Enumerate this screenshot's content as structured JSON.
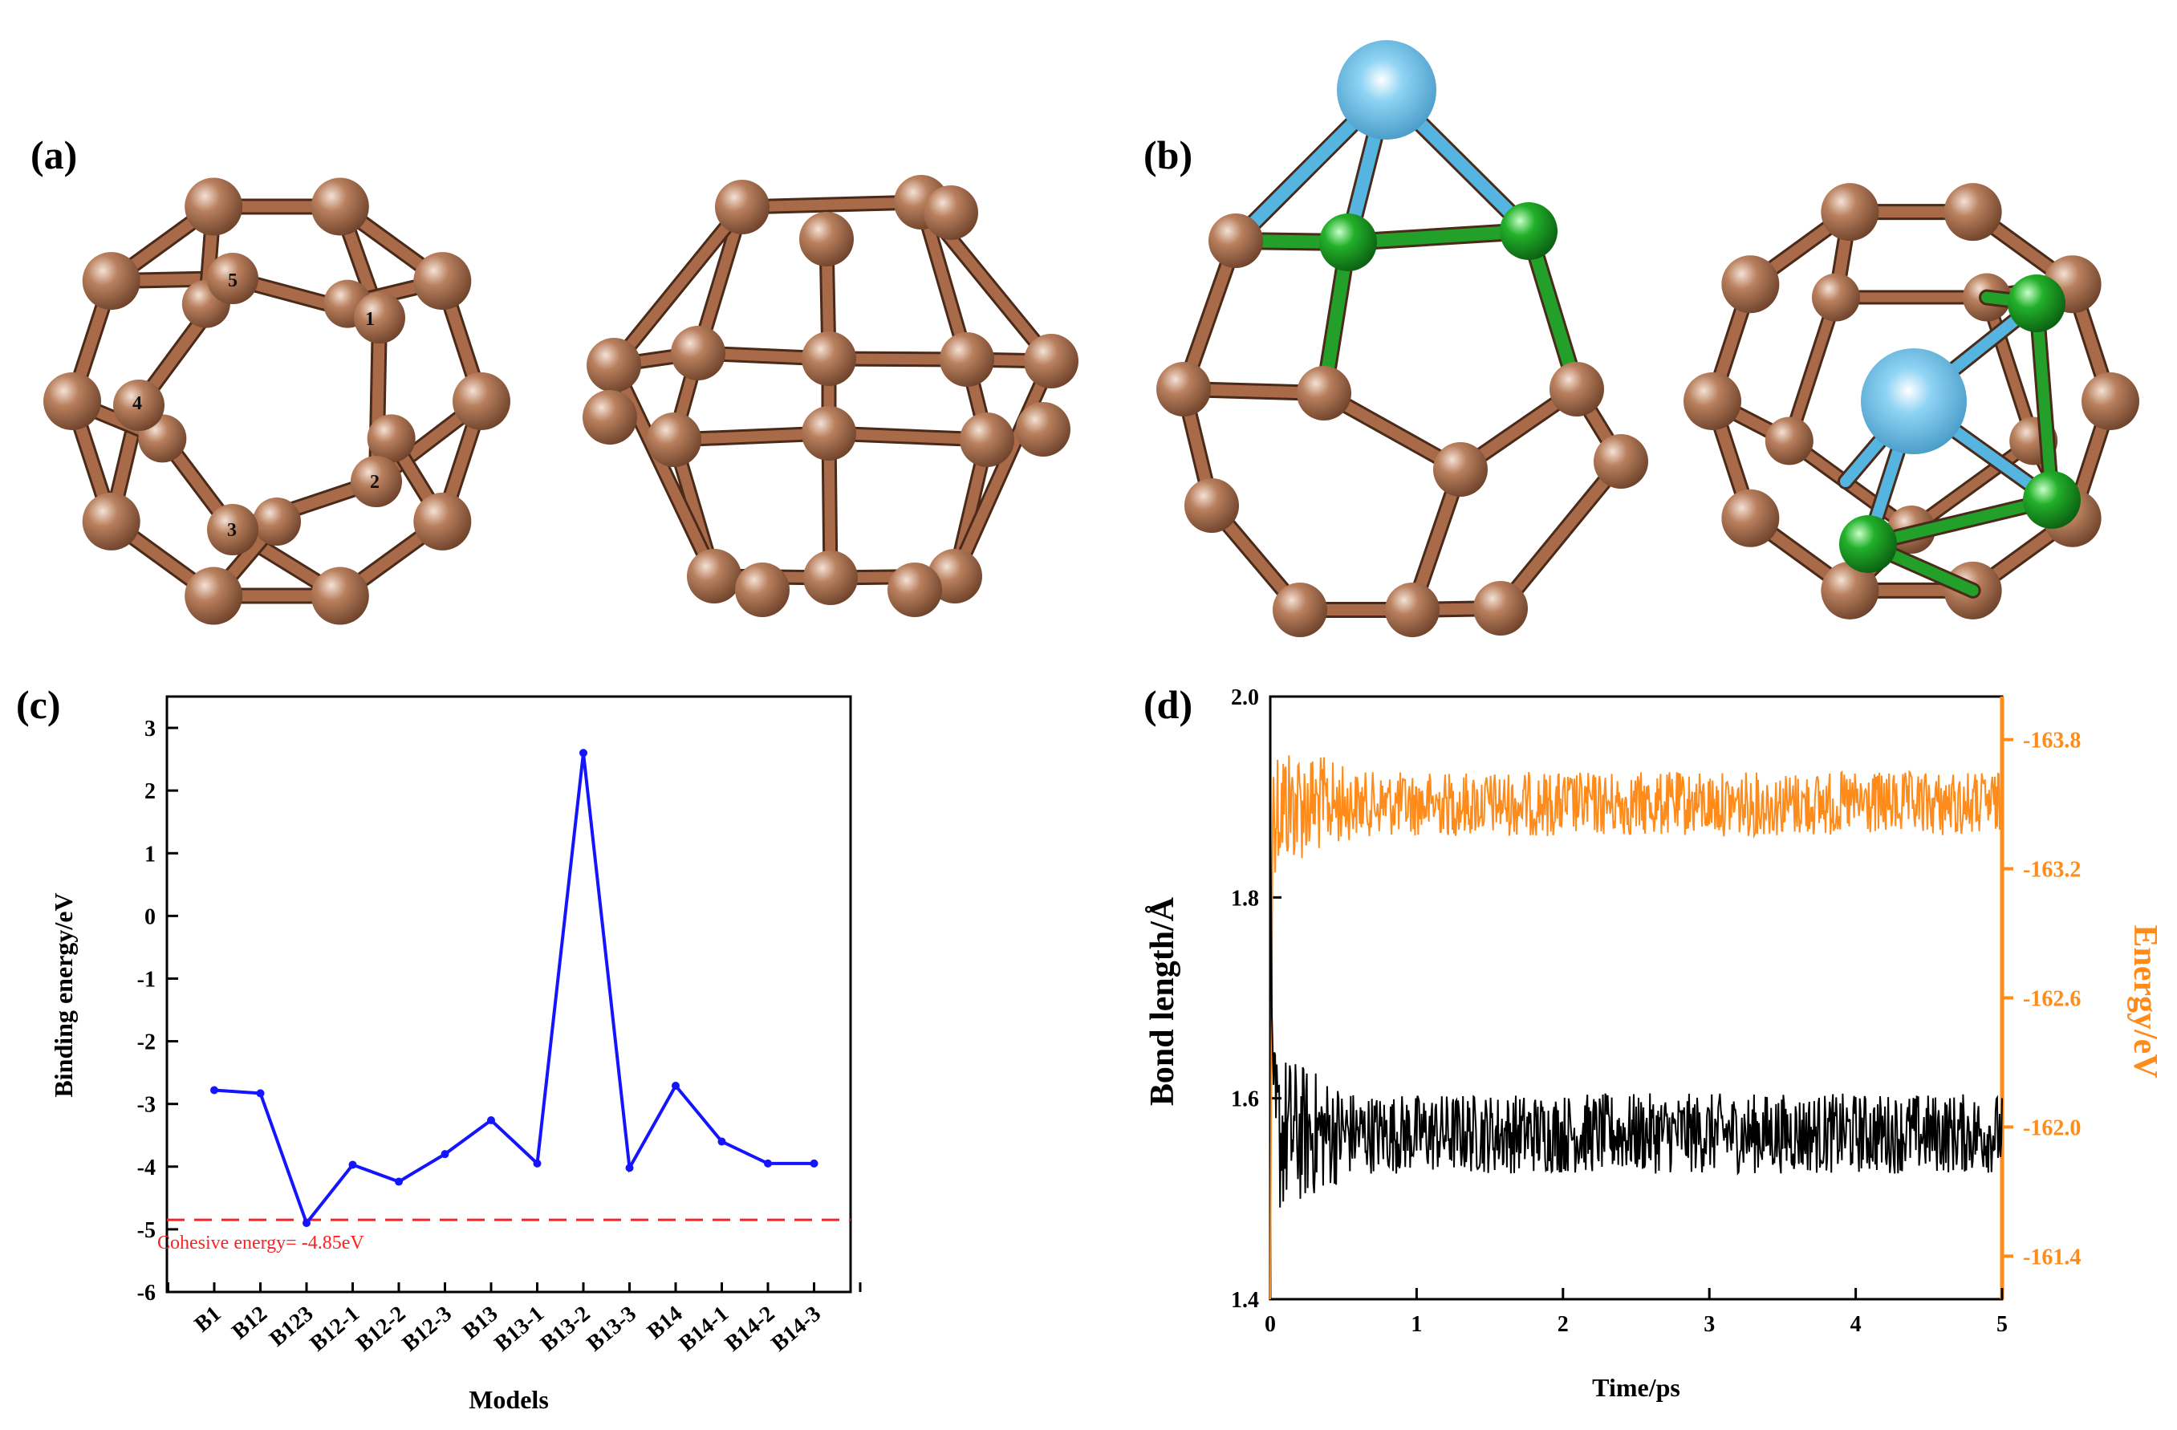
{
  "panels": {
    "a": "(a)",
    "b": "(b)",
    "c": "(c)",
    "d": "(d)"
  },
  "colors": {
    "boron": "#a86a48",
    "highlight_atom": "#22a02a",
    "metal_atom": "#56b4e0",
    "line_c": "#1414ff",
    "cohesive_line": "#ff2020",
    "bond_series": "#000000",
    "energy_series": "#ff8c1a"
  },
  "cluster_labels": [
    "1",
    "2",
    "3",
    "4",
    "5"
  ],
  "chart_data": [
    {
      "type": "line",
      "panel": "c",
      "categories": [
        "B1",
        "B12",
        "B123",
        "B12-1",
        "B12-2",
        "B12-3",
        "B13",
        "B13-1",
        "B13-2",
        "B13-3",
        "B14",
        "B14-1",
        "B14-2",
        "B14-3"
      ],
      "values": [
        -2.78,
        -2.83,
        -4.9,
        -3.97,
        -4.24,
        -3.8,
        -3.26,
        -3.95,
        2.6,
        -4.02,
        -2.71,
        -3.6,
        -3.95,
        -3.95
      ],
      "xlabel": "Models",
      "ylabel": "Binding energy/eV",
      "ylim": [
        -6,
        3.5
      ],
      "yticks": [
        3,
        2,
        1,
        0,
        -1,
        -2,
        -3,
        -4,
        -5,
        -6
      ],
      "reference_line": {
        "value": -4.85,
        "label": "Cohesive energy= -4.85eV"
      },
      "grid": false
    },
    {
      "type": "line",
      "panel": "d",
      "xlabel": "Time/ps",
      "ylabel": "Bond length/Å",
      "ylabel_right": "Energy/eV",
      "xlim": [
        0,
        5
      ],
      "xticks": [
        0,
        1,
        2,
        3,
        4,
        5
      ],
      "ylim": [
        1.4,
        2.0
      ],
      "yticks": [
        1.4,
        1.6,
        1.8,
        2.0
      ],
      "ylim_right": [
        -161.2,
        -164.0
      ],
      "yticks_right": [
        "-163.8",
        "-163.2",
        "-162.6",
        "-162.0",
        "-161.4"
      ],
      "series": [
        {
          "axis": "left",
          "mean": 1.565,
          "amplitude": 0.04,
          "start_value": 1.92,
          "samples": 900
        },
        {
          "axis": "right",
          "mean": -163.5,
          "amplitude": 0.15,
          "start_value": -161.2,
          "samples": 900
        }
      ]
    }
  ]
}
